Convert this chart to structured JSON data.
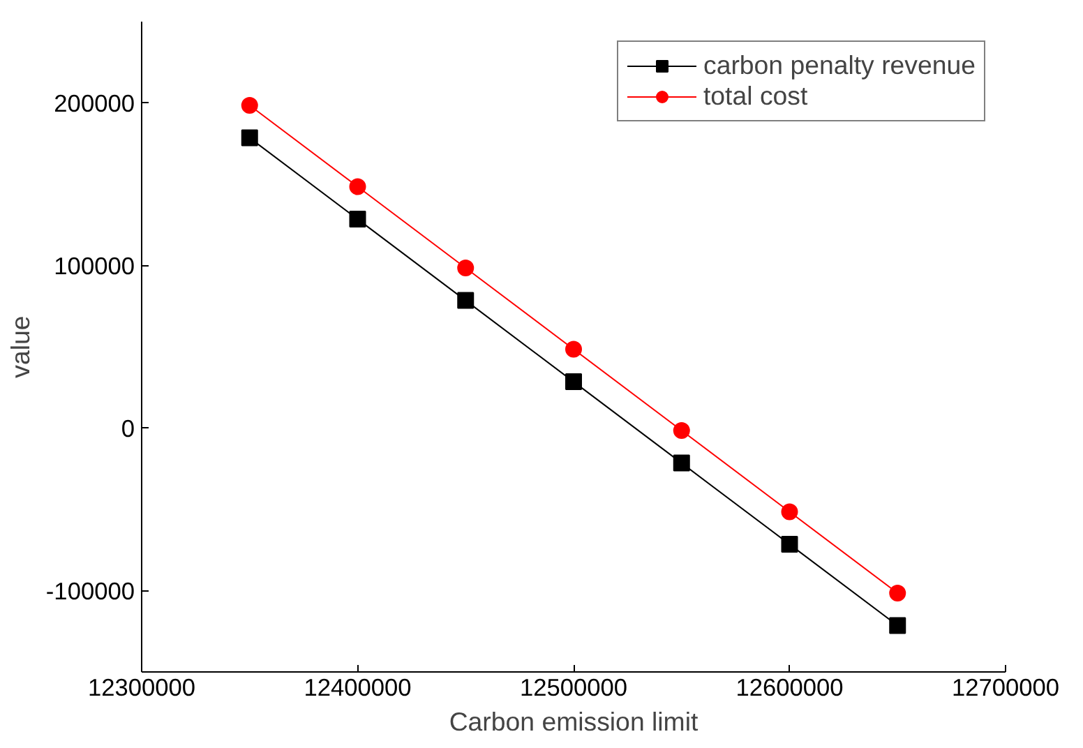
{
  "chart_data": {
    "type": "line",
    "xlabel": "Carbon emission limit",
    "ylabel": "value",
    "x": [
      12350000,
      12400000,
      12450000,
      12500000,
      12550000,
      12600000,
      12650000
    ],
    "series": [
      {
        "name": "carbon penalty revenue",
        "color": "#000000",
        "marker": "square",
        "values": [
          178500,
          128500,
          78500,
          28500,
          -21500,
          -71500,
          -121500
        ]
      },
      {
        "name": "total cost",
        "color": "#ff0000",
        "marker": "circle",
        "values": [
          198500,
          148500,
          98500,
          48500,
          -1500,
          -51500,
          -101500
        ]
      }
    ],
    "xlim": [
      12300000,
      12700000
    ],
    "xticks": [
      12300000,
      12400000,
      12500000,
      12600000,
      12700000
    ],
    "ylim": [
      -150000,
      250000
    ],
    "yticks": [
      -100000,
      0,
      100000,
      200000
    ],
    "grid": false,
    "legend": "top right",
    "line_style": "solid"
  }
}
